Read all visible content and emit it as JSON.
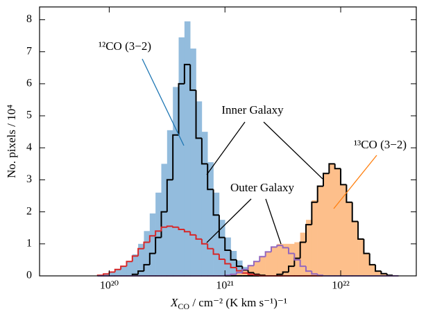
{
  "chart_data": {
    "type": "histogram",
    "xlabel": {
      "symbol": "X",
      "subscript": "CO",
      "units": " / cm⁻² (K km s⁻¹)⁻¹"
    },
    "ylabel": "No. pixels / 10⁴",
    "xscale": "log",
    "xlim": [
      2.5e+19,
      4.5e+22
    ],
    "ylim": [
      0,
      8.4
    ],
    "xticks": [
      {
        "value": 1e+20,
        "label": "10²⁰"
      },
      {
        "value": 1e+21,
        "label": "10²¹"
      },
      {
        "value": 1e+22,
        "label": "10²²"
      }
    ],
    "yticks": [
      0,
      1,
      2,
      3,
      4,
      5,
      6,
      7,
      8
    ],
    "bins": [
      7.943e+19,
      8.913e+19,
      1e+20,
      1.122e+20,
      1.259e+20,
      1.413e+20,
      1.585e+20,
      1.778e+20,
      1.995e+20,
      2.239e+20,
      2.512e+20,
      2.818e+20,
      3.162e+20,
      3.548e+20,
      3.981e+20,
      4.467e+20,
      5.012e+20,
      5.623e+20,
      6.31e+20,
      7.079e+20,
      7.943e+20,
      8.913e+20,
      1e+21,
      1.122e+21,
      1.259e+21,
      1.413e+21,
      1.585e+21,
      1.778e+21,
      1.995e+21,
      2.239e+21,
      2.512e+21,
      2.818e+21,
      3.162e+21,
      3.548e+21,
      3.981e+21,
      4.467e+21,
      5.012e+21,
      5.623e+21,
      6.31e+21,
      7.079e+21,
      7.943e+21,
      8.913e+21,
      1e+22,
      1.122e+22,
      1.259e+22,
      1.413e+22,
      1.585e+22,
      1.778e+22,
      1.995e+22,
      2.239e+22,
      2.512e+22,
      2.818e+22,
      3.162e+22
    ],
    "series": [
      {
        "name": "¹²CO (3−2)",
        "color": "#93bcdd",
        "style": "fill",
        "values": [
          0.02,
          0.06,
          0.12,
          0.2,
          0.3,
          0.45,
          0.67,
          1.0,
          1.4,
          1.95,
          2.6,
          3.5,
          4.55,
          5.9,
          7.45,
          7.95,
          7.1,
          5.45,
          4.5,
          3.55,
          2.6,
          1.75,
          1.2,
          0.78,
          0.48,
          0.28,
          0.15,
          0.07,
          0.02,
          0,
          0,
          0,
          0,
          0,
          0,
          0,
          0,
          0,
          0,
          0,
          0,
          0,
          0,
          0,
          0,
          0,
          0,
          0,
          0,
          0,
          0,
          0
        ]
      },
      {
        "name": "¹³CO (3−2)",
        "color": "#fdbf8b",
        "style": "fill",
        "values": [
          0,
          0,
          0,
          0,
          0,
          0,
          0,
          0,
          0,
          0,
          0,
          0,
          0,
          0,
          0,
          0,
          0,
          0,
          0,
          0,
          0,
          0,
          0.02,
          0.05,
          0.1,
          0.2,
          0.32,
          0.45,
          0.6,
          0.75,
          0.9,
          1.0,
          1.0,
          1.0,
          1.05,
          1.35,
          1.75,
          2.36,
          2.82,
          3.2,
          3.5,
          3.35,
          2.85,
          2.3,
          1.7,
          1.15,
          0.7,
          0.35,
          0.15,
          0.07,
          0.02,
          0
        ]
      },
      {
        "name": "Inner Galaxy",
        "color": "#000000",
        "style": "step",
        "values": [
          0,
          0,
          0,
          0,
          0,
          0,
          0.05,
          0.15,
          0.35,
          0.7,
          1.2,
          2.0,
          3.0,
          4.4,
          6.0,
          6.6,
          5.8,
          4.3,
          3.5,
          2.7,
          1.9,
          1.2,
          0.8,
          0.5,
          0.3,
          0.18,
          0.1,
          0.05,
          0.02,
          0,
          0,
          0,
          0,
          0,
          0,
          0,
          0,
          0,
          0,
          0,
          0,
          0,
          0,
          0,
          0,
          0,
          0,
          0,
          0,
          0,
          0,
          0
        ]
      },
      {
        "color": "#000000",
        "style": "step",
        "values": [
          0,
          0,
          0,
          0,
          0,
          0,
          0,
          0,
          0,
          0,
          0,
          0,
          0,
          0,
          0,
          0,
          0,
          0,
          0,
          0,
          0,
          0,
          0,
          0,
          0,
          0,
          0,
          0,
          0,
          0,
          0,
          0.05,
          0.12,
          0.3,
          0.55,
          1.05,
          1.6,
          2.3,
          2.8,
          3.2,
          3.5,
          3.35,
          2.85,
          2.3,
          1.7,
          1.15,
          0.7,
          0.35,
          0.15,
          0.07,
          0.02,
          0
        ]
      },
      {
        "name": "Outer Galaxy",
        "color": "#d62728",
        "style": "step",
        "values": [
          0.02,
          0.06,
          0.12,
          0.2,
          0.3,
          0.45,
          0.62,
          0.85,
          1.05,
          1.25,
          1.4,
          1.52,
          1.55,
          1.52,
          1.45,
          1.38,
          1.28,
          1.15,
          1.0,
          0.85,
          0.68,
          0.52,
          0.38,
          0.26,
          0.16,
          0.09,
          0.05,
          0.02,
          0,
          0,
          0,
          0,
          0,
          0,
          0,
          0,
          0,
          0,
          0,
          0,
          0,
          0,
          0,
          0,
          0,
          0,
          0,
          0,
          0,
          0,
          0,
          0
        ]
      },
      {
        "color": "#9467bd",
        "style": "step",
        "values": [
          0,
          0,
          0,
          0,
          0,
          0,
          0,
          0,
          0,
          0,
          0,
          0,
          0,
          0,
          0,
          0,
          0,
          0,
          0,
          0,
          0,
          0,
          0.02,
          0.05,
          0.1,
          0.2,
          0.32,
          0.45,
          0.6,
          0.75,
          0.9,
          0.95,
          0.88,
          0.7,
          0.5,
          0.3,
          0.15,
          0.06,
          0.02,
          0,
          0,
          0,
          0,
          0,
          0,
          0,
          0,
          0,
          0,
          0,
          0,
          0
        ]
      }
    ]
  }
}
